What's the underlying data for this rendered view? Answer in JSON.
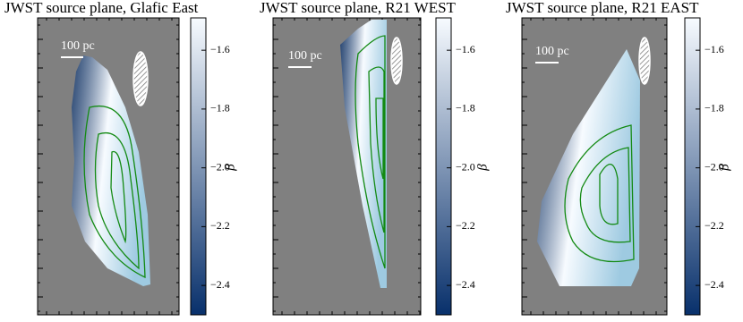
{
  "chart_data": [
    {
      "type": "image",
      "title": "JWST source plane, Glafic East",
      "scale_bar_label": "100 pc",
      "colorbar_label": "β",
      "colormap": [
        "#f7fbff",
        "#08306b"
      ],
      "clim": [
        -2.5,
        -1.49
      ],
      "cticks": [
        {
          "value": -1.6,
          "label": "−1.6"
        },
        {
          "value": -1.8,
          "label": "−1.8"
        },
        {
          "value": -2.0,
          "label": "−2.0"
        },
        {
          "value": -2.2,
          "label": "−2.2"
        },
        {
          "value": -2.4,
          "label": "−2.4"
        }
      ]
    },
    {
      "type": "image",
      "title": "JWST source plane, R21 WEST",
      "scale_bar_label": "100 pc",
      "colorbar_label": "β",
      "colormap": [
        "#f7fbff",
        "#08306b"
      ],
      "clim": [
        -2.5,
        -1.49
      ],
      "cticks": [
        {
          "value": -1.6,
          "label": "−1.6"
        },
        {
          "value": -1.8,
          "label": "−1.8"
        },
        {
          "value": -2.0,
          "label": "−2.0"
        },
        {
          "value": -2.2,
          "label": "−2.2"
        },
        {
          "value": -2.4,
          "label": "−2.4"
        }
      ]
    },
    {
      "type": "image",
      "title": "JWST source plane, R21 EAST",
      "scale_bar_label": "100 pc",
      "colorbar_label": "β",
      "colormap": [
        "#f7fbff",
        "#08306b"
      ],
      "clim": [
        -2.5,
        -1.49
      ],
      "cticks": [
        {
          "value": -1.6,
          "label": "−1.6"
        },
        {
          "value": -1.8,
          "label": "−1.8"
        },
        {
          "value": -2.0,
          "label": "−2.0"
        },
        {
          "value": -2.2,
          "label": "−2.2"
        },
        {
          "value": -2.4,
          "label": "−2.4"
        }
      ]
    }
  ]
}
